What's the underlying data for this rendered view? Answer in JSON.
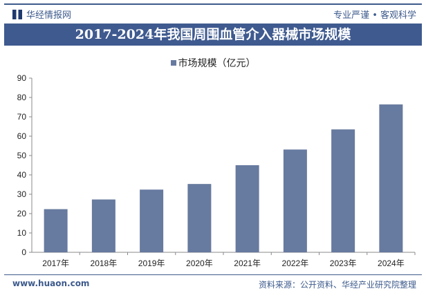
{
  "header": {
    "brand": "华经情报网",
    "slogan": "专业严谨 • 客观科学"
  },
  "chart_data": {
    "type": "bar",
    "title": "2017-2024年我国周围血管介入器械市场规模",
    "categories": [
      "2017年",
      "2018年",
      "2019年",
      "2020年",
      "2021年",
      "2022年",
      "2023年",
      "2024年"
    ],
    "series": [
      {
        "name": "市场规模（亿元）",
        "values": [
          22.3,
          27.3,
          32.4,
          35.3,
          45.0,
          53.1,
          63.5,
          76.4
        ],
        "color": "#677a9f"
      }
    ],
    "ylim": [
      0,
      90
    ],
    "yticks": [
      0,
      10,
      20,
      30,
      40,
      50,
      60,
      70,
      80,
      90
    ],
    "grid": false,
    "legend": "top"
  },
  "footer": {
    "site": "www.huaon.com",
    "source": "资料来源：公开资料、华经产业研究院整理"
  }
}
